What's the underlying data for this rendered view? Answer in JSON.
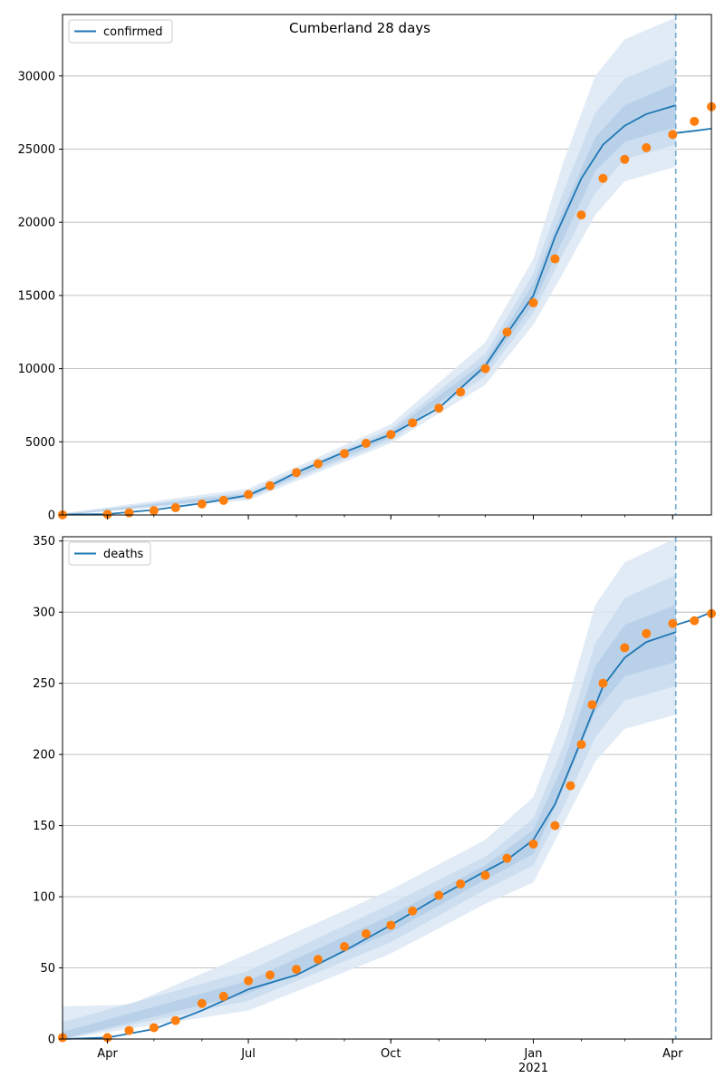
{
  "figure": {
    "title": "Cumberland 28 days"
  },
  "colors": {
    "model_line": "#1f77b4",
    "observed_points": "#ff7f0e",
    "band_outer": "#dce8f4",
    "band_mid": "#c8dcee",
    "band_inner": "#b4cfe8",
    "grid": "#b0b0b0",
    "forecast_marker": "#6fa8d0"
  },
  "chart_data": [
    {
      "type": "line",
      "title": "Cumberland 28 days",
      "legend": {
        "position": "top-left",
        "entries": [
          "confirmed"
        ]
      },
      "series": [
        {
          "name": "confirmed",
          "role": "model median"
        },
        {
          "role": "observed",
          "style": "orange points"
        }
      ],
      "xlim": [
        "2020-03-03",
        "2021-04-26"
      ],
      "ylim": [
        0,
        34200
      ],
      "x_ticks": [
        {
          "date": "2020-04-01",
          "label": "Apr",
          "year": ""
        },
        {
          "date": "2020-07-01",
          "label": "Jul",
          "year": ""
        },
        {
          "date": "2020-10-01",
          "label": "Oct",
          "year": ""
        },
        {
          "date": "2021-01-01",
          "label": "Jan",
          "year": "2021"
        },
        {
          "date": "2021-04-01",
          "label": "Apr",
          "year": ""
        }
      ],
      "y_ticks": [
        0,
        5000,
        10000,
        15000,
        20000,
        25000,
        30000
      ],
      "grid": "horizontal",
      "forecast_start": "2021-04-03",
      "model_points": [
        [
          "2020-03-03",
          30
        ],
        [
          "2020-04-01",
          60
        ],
        [
          "2020-05-01",
          350
        ],
        [
          "2020-06-01",
          800
        ],
        [
          "2020-07-01",
          1350
        ],
        [
          "2020-07-15",
          2000
        ],
        [
          "2020-08-01",
          2900
        ],
        [
          "2020-09-01",
          4300
        ],
        [
          "2020-10-01",
          5500
        ],
        [
          "2020-11-01",
          7300
        ],
        [
          "2020-12-01",
          10200
        ],
        [
          "2020-12-15",
          12400
        ],
        [
          "2021-01-01",
          15000
        ],
        [
          "2021-01-15",
          19000
        ],
        [
          "2021-02-01",
          23000
        ],
        [
          "2021-02-15",
          25300
        ],
        [
          "2021-03-01",
          26600
        ],
        [
          "2021-03-15",
          27400
        ],
        [
          "2021-04-03",
          28000
        ]
      ],
      "forecast_points": [
        [
          "2021-04-03",
          26100
        ],
        [
          "2021-04-15",
          26250
        ],
        [
          "2021-04-26",
          26400
        ]
      ],
      "observed_points": [
        [
          "2020-03-03",
          10
        ],
        [
          "2020-04-01",
          50
        ],
        [
          "2020-04-15",
          150
        ],
        [
          "2020-05-01",
          300
        ],
        [
          "2020-05-15",
          500
        ],
        [
          "2020-06-01",
          750
        ],
        [
          "2020-06-15",
          1000
        ],
        [
          "2020-07-01",
          1400
        ],
        [
          "2020-07-15",
          2000
        ],
        [
          "2020-08-01",
          2900
        ],
        [
          "2020-08-15",
          3500
        ],
        [
          "2020-09-01",
          4200
        ],
        [
          "2020-09-15",
          4900
        ],
        [
          "2020-10-01",
          5500
        ],
        [
          "2020-10-15",
          6300
        ],
        [
          "2020-11-01",
          7300
        ],
        [
          "2020-11-15",
          8400
        ],
        [
          "2020-12-01",
          10000
        ],
        [
          "2020-12-15",
          12500
        ],
        [
          "2021-01-01",
          14500
        ],
        [
          "2021-01-15",
          17500
        ],
        [
          "2021-02-01",
          20500
        ],
        [
          "2021-02-15",
          23000
        ],
        [
          "2021-03-01",
          24300
        ],
        [
          "2021-03-15",
          25100
        ],
        [
          "2021-04-01",
          26000
        ],
        [
          "2021-04-15",
          26900
        ],
        [
          "2021-04-26",
          27900
        ]
      ],
      "bands": [
        {
          "level": "outer",
          "upper": [
            [
              "2020-03-03",
              120
            ],
            [
              "2020-07-01",
              1800
            ],
            [
              "2020-10-01",
              6200
            ],
            [
              "2020-12-01",
              11800
            ],
            [
              "2021-01-01",
              17500
            ],
            [
              "2021-01-20",
              24000
            ],
            [
              "2021-02-10",
              30000
            ],
            [
              "2021-03-01",
              32500
            ],
            [
              "2021-04-03",
              34000
            ]
          ],
          "lower": [
            [
              "2020-03-03",
              0
            ],
            [
              "2020-07-01",
              1000
            ],
            [
              "2020-10-01",
              4900
            ],
            [
              "2020-12-01",
              8900
            ],
            [
              "2021-01-01",
              13000
            ],
            [
              "2021-01-20",
              16500
            ],
            [
              "2021-02-10",
              20500
            ],
            [
              "2021-03-01",
              22800
            ],
            [
              "2021-04-03",
              23800
            ]
          ]
        },
        {
          "level": "mid",
          "upper": [
            [
              "2020-03-03",
              80
            ],
            [
              "2020-07-01",
              1600
            ],
            [
              "2020-10-01",
              5900
            ],
            [
              "2020-12-01",
              11000
            ],
            [
              "2021-01-01",
              16500
            ],
            [
              "2021-01-20",
              22000
            ],
            [
              "2021-02-10",
              27500
            ],
            [
              "2021-03-01",
              29800
            ],
            [
              "2021-04-03",
              31300
            ]
          ],
          "lower": [
            [
              "2020-03-03",
              0
            ],
            [
              "2020-07-01",
              1150
            ],
            [
              "2020-10-01",
              5100
            ],
            [
              "2020-12-01",
              9500
            ],
            [
              "2021-01-01",
              13800
            ],
            [
              "2021-01-20",
              17800
            ],
            [
              "2021-02-10",
              22000
            ],
            [
              "2021-03-01",
              24300
            ],
            [
              "2021-04-03",
              25300
            ]
          ]
        },
        {
          "level": "inner",
          "upper": [
            [
              "2020-03-03",
              50
            ],
            [
              "2020-07-01",
              1450
            ],
            [
              "2020-10-01",
              5700
            ],
            [
              "2020-12-01",
              10500
            ],
            [
              "2021-01-01",
              15800
            ],
            [
              "2021-01-20",
              20800
            ],
            [
              "2021-02-10",
              25800
            ],
            [
              "2021-03-01",
              28000
            ],
            [
              "2021-04-03",
              29500
            ]
          ],
          "lower": [
            [
              "2020-03-03",
              0
            ],
            [
              "2020-07-01",
              1250
            ],
            [
              "2020-10-01",
              5300
            ],
            [
              "2020-12-01",
              9900
            ],
            [
              "2021-01-01",
              14400
            ],
            [
              "2021-01-20",
              18800
            ],
            [
              "2021-02-10",
              23500
            ],
            [
              "2021-03-01",
              25500
            ],
            [
              "2021-04-03",
              26500
            ]
          ]
        }
      ]
    },
    {
      "type": "line",
      "title": "",
      "legend": {
        "position": "top-left",
        "entries": [
          "deaths"
        ]
      },
      "series": [
        {
          "name": "deaths",
          "role": "model median"
        },
        {
          "role": "observed",
          "style": "orange points"
        }
      ],
      "xlim": [
        "2020-03-03",
        "2021-04-26"
      ],
      "ylim": [
        0,
        353
      ],
      "x_ticks": [
        {
          "date": "2020-04-01",
          "label": "Apr",
          "year": ""
        },
        {
          "date": "2020-07-01",
          "label": "Jul",
          "year": ""
        },
        {
          "date": "2020-10-01",
          "label": "Oct",
          "year": ""
        },
        {
          "date": "2021-01-01",
          "label": "Jan",
          "year": "2021"
        },
        {
          "date": "2021-04-01",
          "label": "Apr",
          "year": ""
        }
      ],
      "y_ticks": [
        0,
        50,
        100,
        150,
        200,
        250,
        300,
        350
      ],
      "grid": "horizontal",
      "forecast_start": "2021-04-03",
      "model_points": [
        [
          "2020-03-03",
          0
        ],
        [
          "2020-04-01",
          1
        ],
        [
          "2020-05-01",
          7
        ],
        [
          "2020-06-01",
          20
        ],
        [
          "2020-07-01",
          35
        ],
        [
          "2020-08-01",
          45
        ],
        [
          "2020-09-01",
          62
        ],
        [
          "2020-10-01",
          80
        ],
        [
          "2020-11-01",
          100
        ],
        [
          "2020-12-01",
          118
        ],
        [
          "2020-12-15",
          126
        ],
        [
          "2021-01-01",
          140
        ],
        [
          "2021-01-15",
          165
        ],
        [
          "2021-02-01",
          210
        ],
        [
          "2021-02-15",
          248
        ],
        [
          "2021-03-01",
          268
        ],
        [
          "2021-03-15",
          279
        ],
        [
          "2021-04-03",
          286
        ]
      ],
      "forecast_points": [
        [
          "2021-04-03",
          291
        ],
        [
          "2021-04-15",
          295
        ],
        [
          "2021-04-26",
          300
        ]
      ],
      "observed_points": [
        [
          "2020-03-03",
          1
        ],
        [
          "2020-04-01",
          1
        ],
        [
          "2020-04-15",
          6
        ],
        [
          "2020-05-01",
          8
        ],
        [
          "2020-05-15",
          13
        ],
        [
          "2020-06-01",
          25
        ],
        [
          "2020-06-15",
          30
        ],
        [
          "2020-07-01",
          41
        ],
        [
          "2020-07-15",
          45
        ],
        [
          "2020-08-01",
          49
        ],
        [
          "2020-08-15",
          56
        ],
        [
          "2020-09-01",
          65
        ],
        [
          "2020-09-15",
          74
        ],
        [
          "2020-10-01",
          80
        ],
        [
          "2020-10-15",
          90
        ],
        [
          "2020-11-01",
          101
        ],
        [
          "2020-11-15",
          109
        ],
        [
          "2020-12-01",
          115
        ],
        [
          "2020-12-15",
          127
        ],
        [
          "2021-01-01",
          137
        ],
        [
          "2021-01-15",
          150
        ],
        [
          "2021-01-25",
          178
        ],
        [
          "2021-02-01",
          207
        ],
        [
          "2021-02-08",
          235
        ],
        [
          "2021-02-15",
          250
        ],
        [
          "2021-03-01",
          275
        ],
        [
          "2021-03-15",
          285
        ],
        [
          "2021-04-01",
          292
        ],
        [
          "2021-04-15",
          294
        ],
        [
          "2021-04-26",
          299
        ]
      ],
      "bands": [
        {
          "level": "outer",
          "upper": [
            [
              "2020-03-03",
              23
            ],
            [
              "2020-04-15",
              24
            ],
            [
              "2020-07-01",
              60
            ],
            [
              "2020-10-01",
              105
            ],
            [
              "2020-12-01",
              140
            ],
            [
              "2021-01-01",
              170
            ],
            [
              "2021-01-20",
              225
            ],
            [
              "2021-02-10",
              305
            ],
            [
              "2021-03-01",
              335
            ],
            [
              "2021-04-03",
              352
            ]
          ],
          "lower": [
            [
              "2020-03-03",
              0
            ],
            [
              "2020-07-01",
              20
            ],
            [
              "2020-10-01",
              60
            ],
            [
              "2020-12-01",
              95
            ],
            [
              "2021-01-01",
              110
            ],
            [
              "2021-01-20",
              150
            ],
            [
              "2021-02-10",
              195
            ],
            [
              "2021-03-01",
              218
            ],
            [
              "2021-04-03",
              228
            ]
          ]
        },
        {
          "level": "mid",
          "upper": [
            [
              "2020-03-03",
              12
            ],
            [
              "2020-07-01",
              48
            ],
            [
              "2020-10-01",
              95
            ],
            [
              "2020-12-01",
              128
            ],
            [
              "2021-01-01",
              155
            ],
            [
              "2021-01-20",
              205
            ],
            [
              "2021-02-10",
              278
            ],
            [
              "2021-03-01",
              310
            ],
            [
              "2021-04-03",
              326
            ]
          ],
          "lower": [
            [
              "2020-03-03",
              0
            ],
            [
              "2020-07-01",
              27
            ],
            [
              "2020-10-01",
              68
            ],
            [
              "2020-12-01",
              105
            ],
            [
              "2021-01-01",
              122
            ],
            [
              "2021-01-20",
              162
            ],
            [
              "2021-02-10",
              212
            ],
            [
              "2021-03-01",
              238
            ],
            [
              "2021-04-03",
              248
            ]
          ]
        },
        {
          "level": "inner",
          "upper": [
            [
              "2020-03-03",
              5
            ],
            [
              "2020-07-01",
              41
            ],
            [
              "2020-10-01",
              87
            ],
            [
              "2020-12-01",
              122
            ],
            [
              "2021-01-01",
              147
            ],
            [
              "2021-01-20",
              192
            ],
            [
              "2021-02-10",
              262
            ],
            [
              "2021-03-01",
              291
            ],
            [
              "2021-04-03",
              305
            ]
          ],
          "lower": [
            [
              "2020-03-03",
              0
            ],
            [
              "2020-07-01",
              32
            ],
            [
              "2020-10-01",
              75
            ],
            [
              "2020-12-01",
              112
            ],
            [
              "2021-01-01",
              130
            ],
            [
              "2021-01-20",
              175
            ],
            [
              "2021-02-10",
              230
            ],
            [
              "2021-03-01",
              255
            ],
            [
              "2021-04-03",
              265
            ]
          ]
        }
      ]
    }
  ]
}
